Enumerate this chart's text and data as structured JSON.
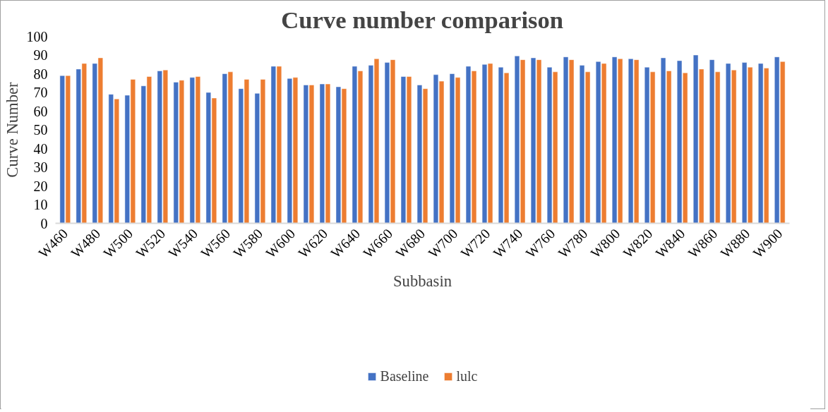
{
  "chart_data": {
    "type": "bar",
    "title": "Curve number comparison",
    "xlabel": "Subbasin",
    "ylabel": "Curve Number",
    "categories": [
      "W460",
      null,
      "W480",
      null,
      "W500",
      null,
      "W520",
      null,
      "W540",
      null,
      "W560",
      null,
      "W580",
      null,
      "W600",
      null,
      "W620",
      null,
      "W640",
      null,
      "W660",
      null,
      "W680",
      null,
      "W700",
      null,
      "W720",
      null,
      "W740",
      null,
      "W760",
      null,
      "W780",
      null,
      "W800",
      null,
      "W820",
      null,
      "W840",
      null,
      "W860",
      null,
      "W880",
      null,
      "W900"
    ],
    "series": [
      {
        "name": "Baseline",
        "color": "#4472c4",
        "values": [
          79,
          82.5,
          85.5,
          69,
          68.5,
          73.5,
          81.5,
          75.5,
          78,
          70,
          80,
          72,
          69.5,
          84,
          77.5,
          74,
          74.5,
          73,
          84,
          84.5,
          86,
          78.5,
          74,
          79.5,
          80,
          84,
          85,
          83.5,
          89.5,
          88.5,
          83.5,
          89,
          84.5,
          86.5,
          89,
          88,
          83.5,
          88.5,
          87,
          90,
          87.5,
          85.5,
          86,
          85.5,
          89
        ]
      },
      {
        "name": "lulc",
        "color": "#ed7d31",
        "values": [
          79,
          85.5,
          88.5,
          66.5,
          77,
          78.5,
          82,
          76.5,
          78.5,
          67,
          81,
          77,
          77,
          84,
          78,
          74,
          74.5,
          72,
          81.5,
          88,
          87.5,
          78.5,
          72,
          76,
          78,
          81.5,
          85.5,
          80.5,
          87.5,
          87.5,
          81,
          87.5,
          81,
          85.5,
          88,
          87.5,
          81,
          81.5,
          80.5,
          82.5,
          81,
          82,
          83.5,
          83,
          86.5
        ]
      }
    ],
    "ylim": [
      0,
      100
    ],
    "yticks": [
      0,
      10,
      20,
      30,
      40,
      50,
      60,
      70,
      80,
      90,
      100
    ],
    "grid": false,
    "legend": "bottom"
  }
}
